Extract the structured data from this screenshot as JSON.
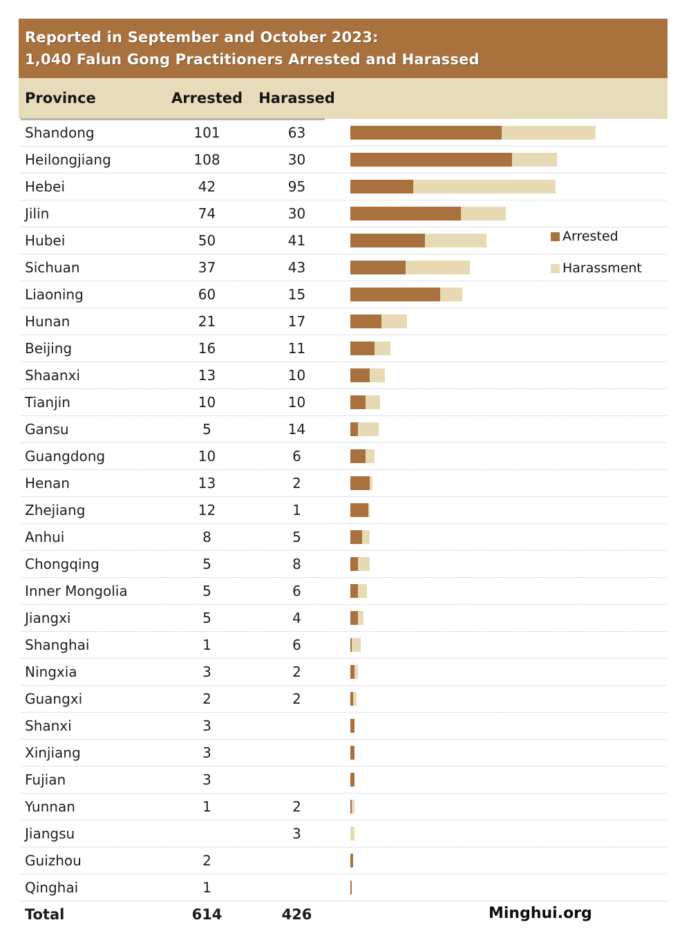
{
  "title": {
    "line1": "Reported in September and October 2023:",
    "line2": "1,040 Falun Gong Practitioners Arrested and Harassed"
  },
  "table": {
    "columns": {
      "province": "Province",
      "arrested": "Arrested",
      "harassed": "Harassed"
    },
    "total": {
      "label": "Total",
      "arrested": "614",
      "harassed": "426"
    }
  },
  "legend": {
    "arrested_label": "Arrested",
    "harassment_label": "Harassment"
  },
  "footer": {
    "credit": "Minghui.org"
  },
  "colors": {
    "banner_bg": "#a9713e",
    "header_row_bg": "#e7dcba",
    "arrested": "#a9713e",
    "harassment": "#e6d9b3"
  },
  "chart_data": {
    "type": "bar",
    "orientation": "horizontal",
    "stacked": true,
    "title": "Reported in September and October 2023: 1,040 Falun Gong Practitioners Arrested and Harassed",
    "legend_position": "right",
    "grid": false,
    "categories": [
      "Shandong",
      "Heilongjiang",
      "Hebei",
      "Jilin",
      "Hubei",
      "Sichuan",
      "Liaoning",
      "Hunan",
      "Beijing",
      "Shaanxi",
      "Tianjin",
      "Gansu",
      "Guangdong",
      "Henan",
      "Zhejiang",
      "Anhui",
      "Chongqing",
      "Inner Mongolia",
      "Jiangxi",
      "Shanghai",
      "Ningxia",
      "Guangxi",
      "Shanxi",
      "Xinjiang",
      "Fujian",
      "Yunnan",
      "Jiangsu",
      "Guizhou",
      "Qinghai"
    ],
    "series": [
      {
        "name": "Arrested",
        "values": [
          101,
          108,
          42,
          74,
          50,
          37,
          60,
          21,
          16,
          13,
          10,
          5,
          10,
          13,
          12,
          8,
          5,
          5,
          5,
          1,
          3,
          2,
          3,
          3,
          3,
          1,
          null,
          2,
          1
        ]
      },
      {
        "name": "Harassment",
        "values": [
          63,
          30,
          95,
          30,
          41,
          43,
          15,
          17,
          11,
          10,
          10,
          14,
          6,
          2,
          1,
          5,
          8,
          6,
          4,
          6,
          2,
          2,
          null,
          null,
          null,
          2,
          3,
          null,
          null
        ]
      }
    ],
    "totals": {
      "arrested": 614,
      "harassed": 426,
      "combined": 1040
    },
    "x_max_total": 164
  }
}
